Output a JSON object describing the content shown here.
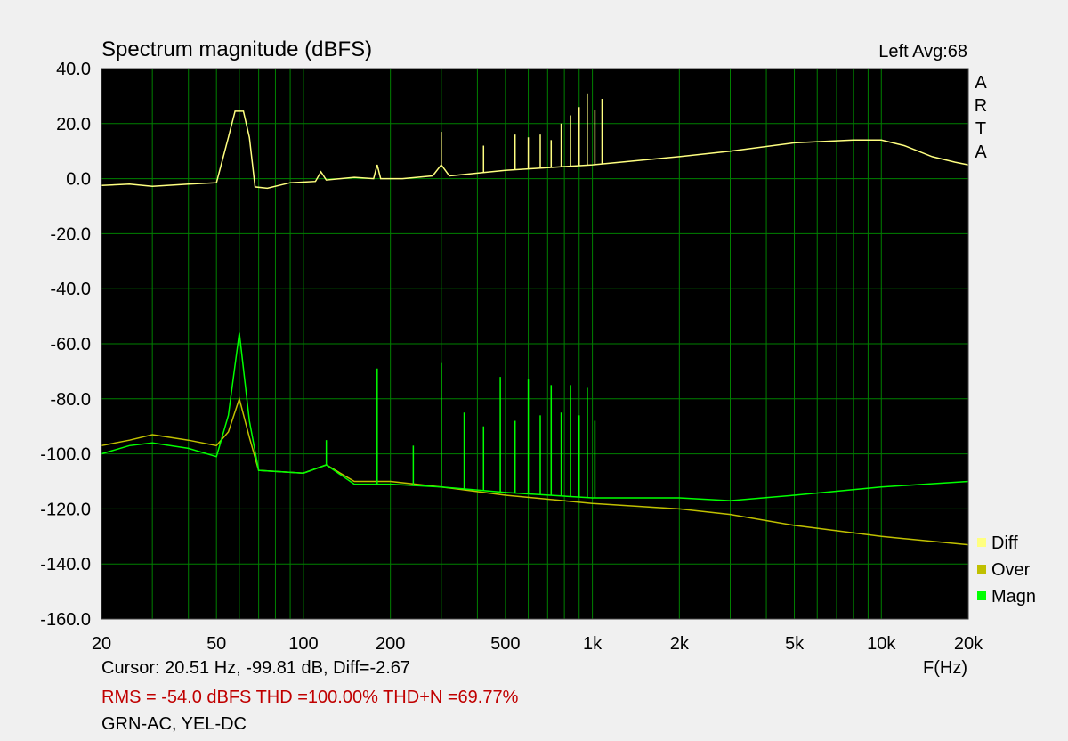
{
  "header": {
    "title": "Spectrum magnitude (dBFS)",
    "channel_info": "Left  Avg:68",
    "brand_letters": [
      "A",
      "R",
      "T",
      "A"
    ]
  },
  "footer": {
    "cursor_readout": "Cursor: 20.51 Hz, -99.81 dB,  Diff=-2.67",
    "x_axis_unit": "F(Hz)",
    "stats": "RMS =  -54.0 dBFS  THD =100.00%  THD+N =69.77%",
    "note": "GRN-AC, YEL-DC"
  },
  "legend": [
    {
      "label": "Diff",
      "color": "#ffff80"
    },
    {
      "label": "Over",
      "color": "#c0c000"
    },
    {
      "label": "Magn",
      "color": "#00ff00"
    }
  ],
  "colors": {
    "plot_background": "#000000",
    "grid": "#008000",
    "window_background": "#f0f0f0",
    "stats_text": "#c00000"
  },
  "chart_data": {
    "type": "line",
    "x_scale": "log",
    "xlim": [
      20,
      20000
    ],
    "ylim": [
      -160,
      40
    ],
    "xlabel": "F(Hz)",
    "ylabel": "",
    "x_ticks": [
      {
        "value": 20,
        "label": "20"
      },
      {
        "value": 50,
        "label": "50"
      },
      {
        "value": 100,
        "label": "100"
      },
      {
        "value": 200,
        "label": "200"
      },
      {
        "value": 500,
        "label": "500"
      },
      {
        "value": 1000,
        "label": "1k"
      },
      {
        "value": 2000,
        "label": "2k"
      },
      {
        "value": 5000,
        "label": "5k"
      },
      {
        "value": 10000,
        "label": "10k"
      },
      {
        "value": 20000,
        "label": "20k"
      }
    ],
    "y_ticks": [
      {
        "value": 40,
        "label": "40.0"
      },
      {
        "value": 20,
        "label": "20.0"
      },
      {
        "value": 0,
        "label": "0.0"
      },
      {
        "value": -20,
        "label": "-20.0"
      },
      {
        "value": -40,
        "label": "-40.0"
      },
      {
        "value": -60,
        "label": "-60.0"
      },
      {
        "value": -80,
        "label": "-80.0"
      },
      {
        "value": -100,
        "label": "-100.0"
      },
      {
        "value": -120,
        "label": "-120.0"
      },
      {
        "value": -140,
        "label": "-140.0"
      },
      {
        "value": -160,
        "label": "-160.0"
      }
    ],
    "grid": true,
    "legend_position": "right-bottom",
    "series": [
      {
        "name": "Diff",
        "color": "#ffff80",
        "x": [
          20,
          25,
          30,
          40,
          50,
          55,
          58,
          62,
          65,
          68,
          75,
          90,
          110,
          115,
          120,
          150,
          175,
          180,
          185,
          220,
          280,
          300,
          320,
          400,
          500,
          700,
          1000,
          2000,
          3000,
          5000,
          8000,
          10000,
          12000,
          15000,
          18000,
          20000
        ],
        "y": [
          -2.5,
          -2.0,
          -2.8,
          -2.0,
          -1.5,
          15,
          24.5,
          24.5,
          15,
          -3,
          -3.5,
          -1.5,
          -1,
          2.5,
          -0.5,
          0.5,
          0,
          5,
          0,
          0,
          1,
          5,
          1,
          2,
          3,
          4,
          5,
          8,
          10,
          13,
          14,
          14,
          12,
          8,
          6,
          5
        ]
      },
      {
        "name": "Over",
        "color": "#c0c000",
        "x": [
          20,
          25,
          30,
          40,
          50,
          55,
          60,
          65,
          70,
          100,
          120,
          150,
          180,
          200,
          300,
          500,
          1000,
          2000,
          3000,
          5000,
          10000,
          20000
        ],
        "y": [
          -97,
          -95,
          -93,
          -95,
          -97,
          -92,
          -80,
          -94,
          -106,
          -107,
          -104,
          -110,
          -110,
          -110,
          -112,
          -115,
          -118,
          -120,
          -122,
          -126,
          -130,
          -133
        ]
      },
      {
        "name": "Magn",
        "color": "#00ff00",
        "x": [
          20,
          25,
          30,
          40,
          50,
          55,
          60,
          65,
          70,
          100,
          120,
          150,
          180,
          200,
          300,
          500,
          1000,
          2000,
          3000,
          5000,
          10000,
          20000
        ],
        "y": [
          -100,
          -97,
          -96,
          -98,
          -101,
          -86,
          -56,
          -88,
          -106,
          -107,
          -104,
          -111,
          -111,
          -111,
          -112,
          -114,
          -116,
          -116,
          -117,
          -115,
          -112,
          -110
        ]
      }
    ],
    "peaks": [
      {
        "series": "Magn",
        "x": [
          120,
          180,
          240,
          300,
          360,
          420,
          480,
          540,
          600,
          660,
          720,
          780,
          840,
          900,
          960,
          1020
        ],
        "y": [
          -95,
          -69,
          -97,
          -67,
          -85,
          -90,
          -72,
          -88,
          -73,
          -86,
          -75,
          -85,
          -75,
          -86,
          -76,
          -88
        ]
      },
      {
        "series": "Diff",
        "x": [
          300,
          420,
          540,
          600,
          660,
          720,
          780,
          840,
          900,
          960,
          1020,
          1080
        ],
        "y": [
          17,
          12,
          16,
          15,
          16,
          14,
          20,
          23,
          26,
          31,
          25,
          29
        ]
      }
    ]
  }
}
